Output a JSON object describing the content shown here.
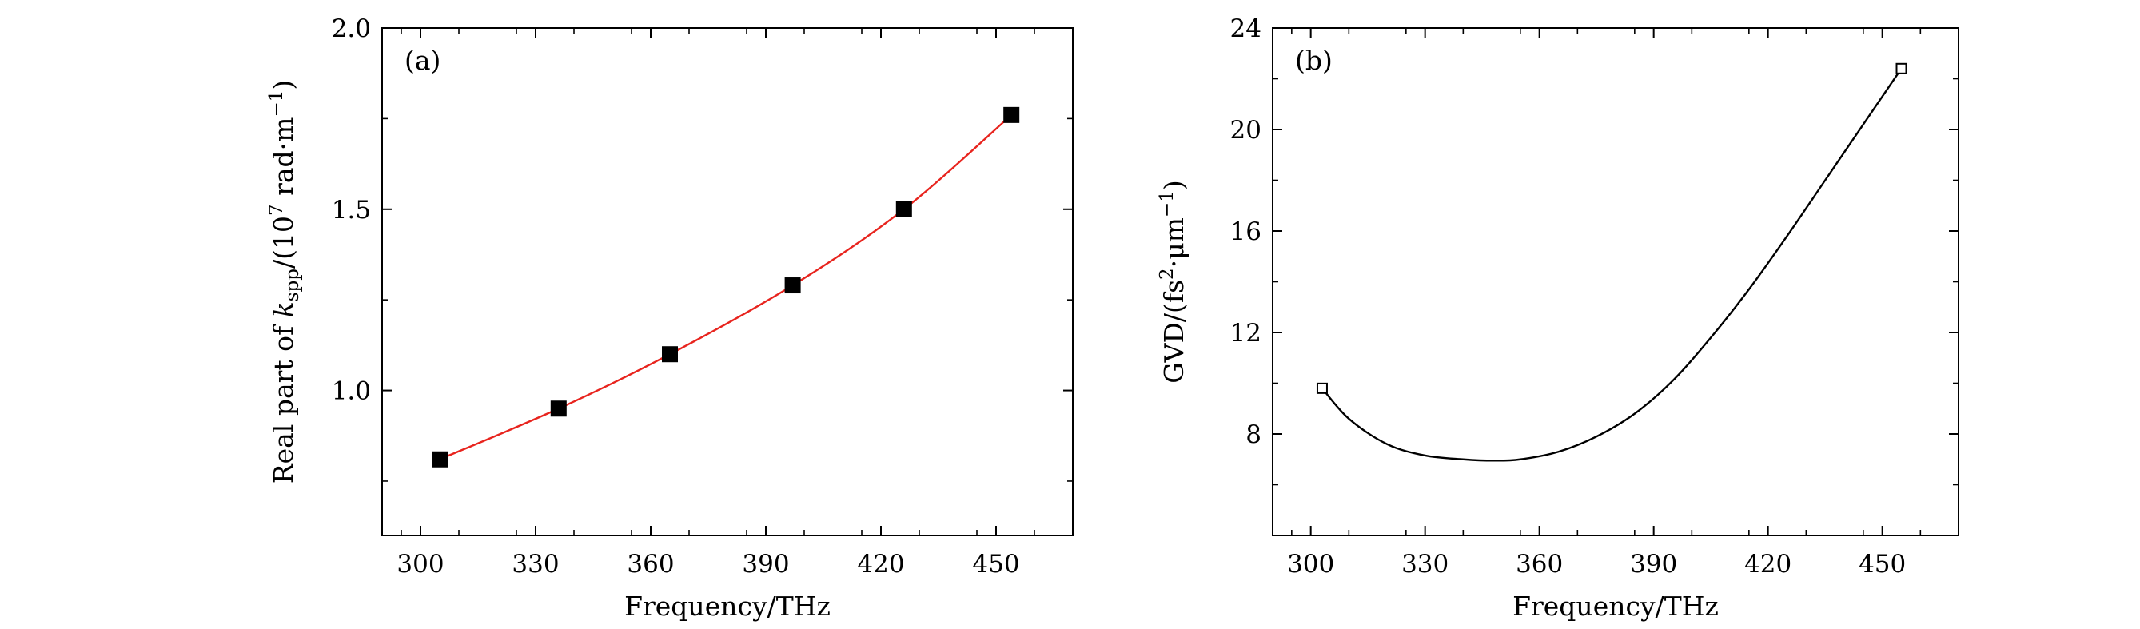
{
  "chart_data": [
    {
      "type": "scatter",
      "panel_label": "(a)",
      "xlabel": "Frequency/THz",
      "ylabel_parts": {
        "pre": "Real part of ",
        "k": "k",
        "sub": "spp",
        "mid": "/(10",
        "sup": "7",
        "post": " rad·m",
        "sup2": "−1",
        "end": ")"
      },
      "xlim": [
        290,
        470
      ],
      "ylim": [
        0.6,
        2.0
      ],
      "xticks": [
        300,
        330,
        360,
        390,
        420,
        450
      ],
      "xtick_labels": [
        "300",
        "330",
        "360",
        "390",
        "420",
        "450"
      ],
      "yticks": [
        1.0,
        1.5,
        2.0
      ],
      "ytick_labels": [
        "1.0",
        "1.5",
        "2.0"
      ],
      "series": [
        {
          "marker": "filled-square",
          "color": "#000000",
          "x": [
            305,
            336,
            365,
            397,
            426,
            454
          ],
          "y": [
            0.81,
            0.95,
            1.1,
            1.29,
            1.5,
            1.76
          ]
        },
        {
          "style": "fit-line",
          "color": "#e8241e",
          "x": [
            305,
            336,
            365,
            397,
            426,
            454
          ],
          "y": [
            0.81,
            0.95,
            1.1,
            1.29,
            1.5,
            1.76
          ]
        }
      ]
    },
    {
      "type": "line",
      "panel_label": "(b)",
      "xlabel": "Frequency/THz",
      "ylabel_parts": {
        "pre": "GVD/(fs",
        "sup": "2",
        "mid": "·μm",
        "sup2": "−1",
        "end": ")"
      },
      "xlim": [
        290,
        470
      ],
      "ylim": [
        4,
        24
      ],
      "xticks": [
        300,
        330,
        360,
        390,
        420,
        450
      ],
      "xtick_labels": [
        "300",
        "330",
        "360",
        "390",
        "420",
        "450"
      ],
      "yticks": [
        8,
        12,
        16,
        20,
        24
      ],
      "ytick_labels": [
        "8",
        "12",
        "16",
        "20",
        "24"
      ],
      "series": [
        {
          "style": "line",
          "color": "#000000",
          "x": [
            303,
            310,
            320,
            330,
            340,
            348,
            355,
            365,
            375,
            385,
            395,
            405,
            415,
            425,
            435,
            445,
            455
          ],
          "y": [
            9.8,
            8.6,
            7.6,
            7.15,
            7.0,
            6.95,
            7.0,
            7.3,
            7.9,
            8.8,
            10.1,
            11.8,
            13.7,
            15.8,
            18.0,
            20.2,
            22.4
          ]
        },
        {
          "marker": "open-square",
          "color": "#000000",
          "x": [
            303,
            455
          ],
          "y": [
            9.8,
            22.4
          ]
        }
      ]
    }
  ]
}
